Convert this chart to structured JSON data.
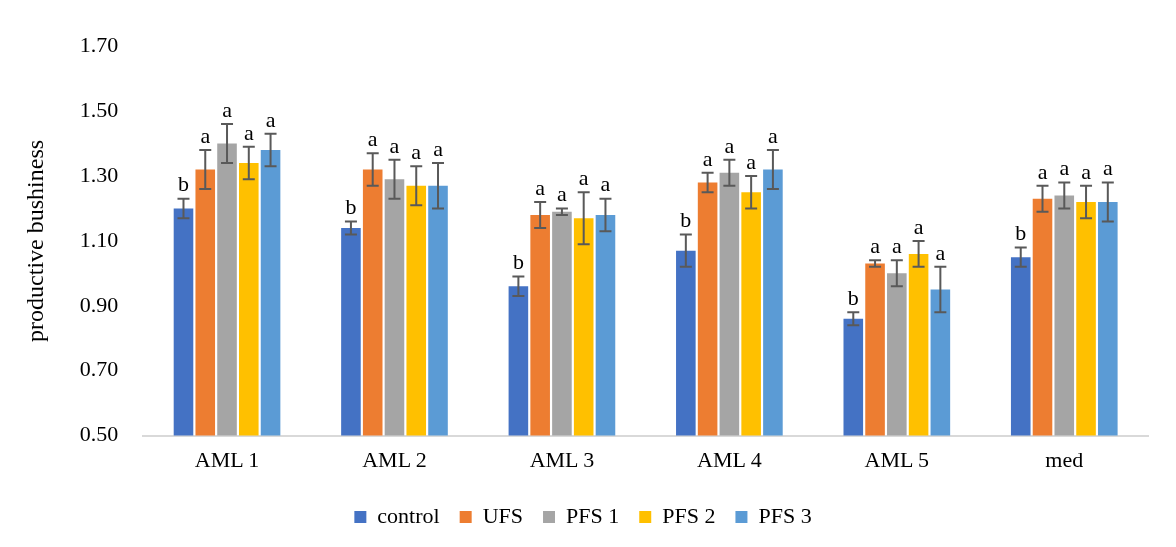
{
  "chart_data": {
    "type": "bar",
    "ylabel": "productive bushiness",
    "categories": [
      "AML 1",
      "AML 2",
      "AML 3",
      "AML 4",
      "AML 5",
      "med"
    ],
    "ylim": [
      0.5,
      1.7
    ],
    "yticks": [
      {
        "value": 0.5,
        "label": "0.50"
      },
      {
        "value": 0.7,
        "label": "0.70"
      },
      {
        "value": 0.9,
        "label": "0.90"
      },
      {
        "value": 1.1,
        "label": "1.10"
      },
      {
        "value": 1.3,
        "label": "1.30"
      },
      {
        "value": 1.5,
        "label": "1.50"
      },
      {
        "value": 1.7,
        "label": "1.70"
      }
    ],
    "grid": false,
    "legend": "bottom",
    "series": [
      {
        "name": "control",
        "color": "#4472c4",
        "values": [
          1.2,
          1.14,
          0.96,
          1.07,
          0.86,
          1.05
        ],
        "errors": [
          0.03,
          0.02,
          0.03,
          0.05,
          0.02,
          0.03
        ],
        "value_labels": [
          "b",
          "b",
          "b",
          "b",
          "b",
          "b"
        ]
      },
      {
        "name": "UFS",
        "color": "#ed7d31",
        "values": [
          1.32,
          1.32,
          1.18,
          1.28,
          1.03,
          1.23
        ],
        "errors": [
          0.06,
          0.05,
          0.04,
          0.03,
          0.01,
          0.04
        ],
        "value_labels": [
          "a",
          "a",
          "a",
          "a",
          "a",
          "a"
        ]
      },
      {
        "name": "PFS 1",
        "color": "#a5a5a5",
        "values": [
          1.4,
          1.29,
          1.19,
          1.31,
          1.0,
          1.24
        ],
        "errors": [
          0.06,
          0.06,
          0.01,
          0.04,
          0.04,
          0.04
        ],
        "value_labels": [
          "a",
          "a",
          "a",
          "a",
          "a",
          "a"
        ]
      },
      {
        "name": "PFS 2",
        "color": "#ffc000",
        "values": [
          1.34,
          1.27,
          1.17,
          1.25,
          1.06,
          1.22
        ],
        "errors": [
          0.05,
          0.06,
          0.08,
          0.05,
          0.04,
          0.05
        ],
        "value_labels": [
          "a",
          "a",
          "a",
          "a",
          "a",
          "a"
        ]
      },
      {
        "name": "PFS 3",
        "color": "#5b9bd5",
        "values": [
          1.38,
          1.27,
          1.18,
          1.32,
          0.95,
          1.22
        ],
        "errors": [
          0.05,
          0.07,
          0.05,
          0.06,
          0.07,
          0.06
        ],
        "value_labels": [
          "a",
          "a",
          "a",
          "a",
          "a",
          "a"
        ]
      }
    ]
  }
}
